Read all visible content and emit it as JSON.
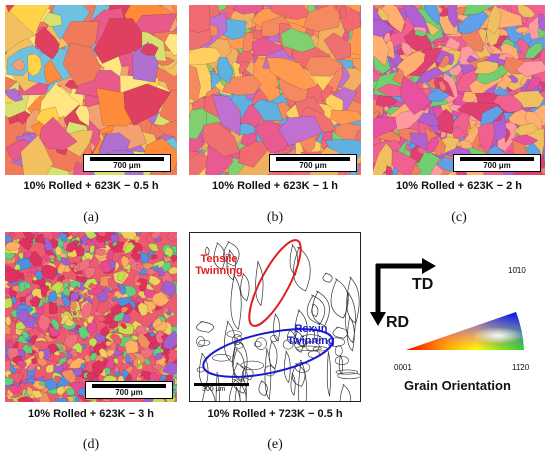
{
  "panels": [
    {
      "scale": "700 μm",
      "caption": "10% Rolled + 623K − 0.5 h",
      "letter": "(a)"
    },
    {
      "scale": "700 μm",
      "caption": "10% Rolled + 623K − 1 h",
      "letter": "(b)"
    },
    {
      "scale": "700 μm",
      "caption": "10% Rolled + 623K − 2 h",
      "letter": "(c)"
    },
    {
      "scale": "700 μm",
      "caption": "10% Rolled + 623K − 3 h",
      "letter": "(d)"
    },
    {
      "scale": "300 μm",
      "caption": "10% Rolled + 723K − 0.5 h",
      "letter": "(e)"
    }
  ],
  "annotations": {
    "tensile": "Tensile Twinning",
    "rex": "Rex in Twinning",
    "tensile_color": "#e02020",
    "rex_color": "#1a1ad0"
  },
  "axes": {
    "horizontal": "TD",
    "vertical": "RD"
  },
  "legend": {
    "corner_bottom_left": "0001",
    "corner_bottom_right": "11̄20",
    "corner_top": "10̄10",
    "title": "Grain Orientation"
  },
  "colors": {
    "panel_a": [
      "#f07a5a",
      "#f5a070",
      "#ffd24a",
      "#ffe680",
      "#e85a8a",
      "#ff8a3a",
      "#f2c060",
      "#d8e070",
      "#b070d0",
      "#70c0e0",
      "#e04060"
    ],
    "panel_b": [
      "#f06a70",
      "#f58a60",
      "#ff9a50",
      "#e85a90",
      "#f0b060",
      "#c070d0",
      "#80d070",
      "#60b0e0",
      "#ffd060",
      "#ee7070"
    ],
    "panel_c": [
      "#f06090",
      "#e850a0",
      "#f08060",
      "#ff9aa0",
      "#f0c060",
      "#b060d0",
      "#70d070",
      "#60a0e8",
      "#e04070",
      "#ffb070"
    ],
    "panel_d": [
      "#ee5a70",
      "#f07080",
      "#e84a90",
      "#f09060",
      "#ffb060",
      "#a060d0",
      "#60d080",
      "#5090e0",
      "#f2d060",
      "#c0e050",
      "#e03060"
    ]
  }
}
